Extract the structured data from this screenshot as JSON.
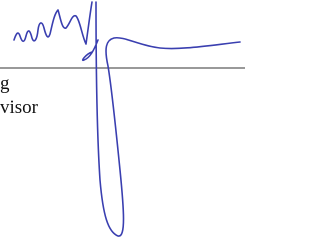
{
  "text_lines": [
    "g",
    "visor"
  ]
}
